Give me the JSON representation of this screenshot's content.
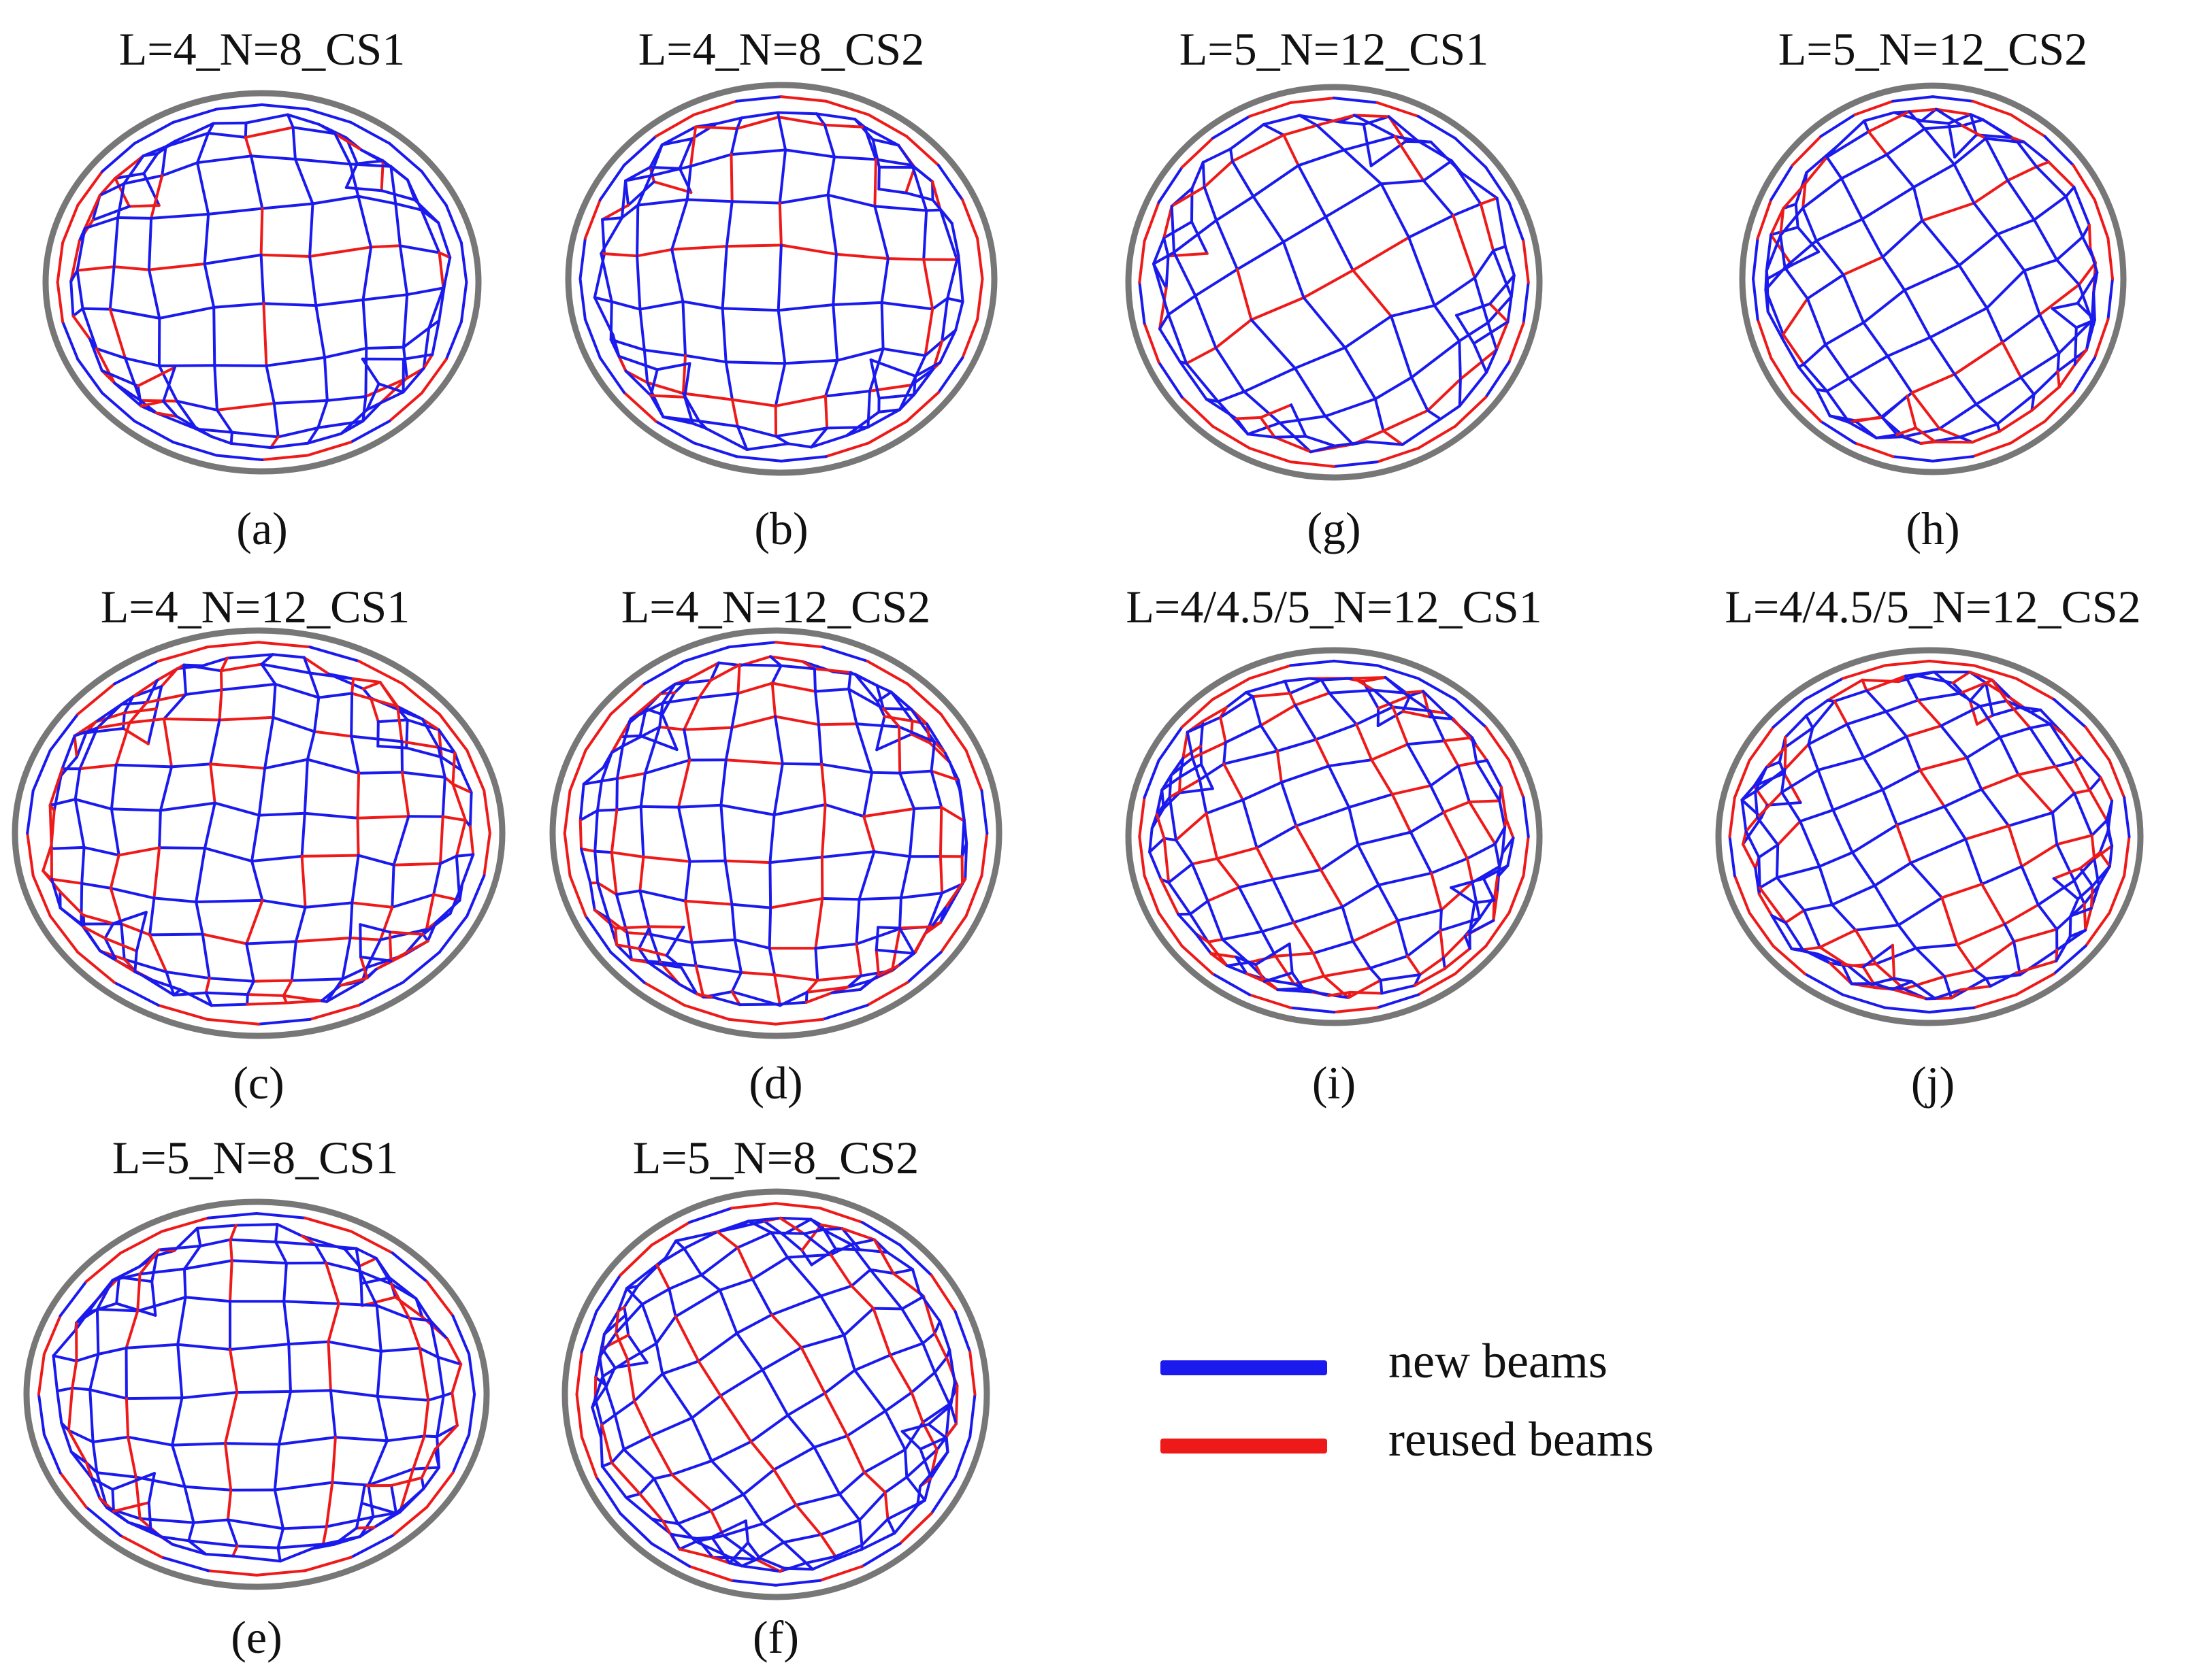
{
  "colors": {
    "new_beam": "#1a1aee",
    "reused_beam": "#ee1a1a",
    "rim": "#777777"
  },
  "panels": [
    {
      "id": "a",
      "title": "L=4_N=8_CS1",
      "label": "(a)",
      "rows": 7,
      "cols": 8,
      "pattern": "rows",
      "tilt": -4
    },
    {
      "id": "b",
      "title": "L=4_N=8_CS2",
      "label": "(b)",
      "rows": 7,
      "cols": 8,
      "pattern": "rows",
      "tilt": 0
    },
    {
      "id": "g",
      "title": "L=5_N=12_CS1",
      "label": "(g)",
      "rows": 6,
      "cols": 7,
      "pattern": "rows",
      "tilt": -28
    },
    {
      "id": "h",
      "title": "L=5_N=12_CS2",
      "label": "(h)",
      "rows": 8,
      "cols": 7,
      "pattern": "rows",
      "tilt": -32
    },
    {
      "id": "c",
      "title": "L=4_N=12_CS1",
      "label": "(c)",
      "rows": 9,
      "cols": 10,
      "pattern": "mixed",
      "tilt": 3
    },
    {
      "id": "d",
      "title": "L=4_N=12_CS2",
      "label": "(d)",
      "rows": 9,
      "cols": 10,
      "pattern": "mixed",
      "tilt": 0
    },
    {
      "id": "i",
      "title": "L=4/4.5/5_N=12_CS1",
      "label": "(i)",
      "rows": 9,
      "cols": 9,
      "pattern": "mixed",
      "tilt": -22
    },
    {
      "id": "j",
      "title": "L=4/4.5/5_N=12_CS2",
      "label": "(j)",
      "rows": 9,
      "cols": 9,
      "pattern": "mixed",
      "tilt": -26
    },
    {
      "id": "e",
      "title": "L=5_N=8_CS1",
      "label": "(e)",
      "rows": 8,
      "cols": 9,
      "pattern": "cols",
      "tilt": 0
    },
    {
      "id": "f",
      "title": "L=5_N=8_CS2",
      "label": "(f)",
      "rows": 9,
      "cols": 10,
      "pattern": "cols",
      "tilt": -30
    }
  ],
  "legend": {
    "items": [
      {
        "label": "new beams",
        "color": "#1a1aee"
      },
      {
        "label": "reused beams",
        "color": "#ee1a1a"
      }
    ]
  }
}
